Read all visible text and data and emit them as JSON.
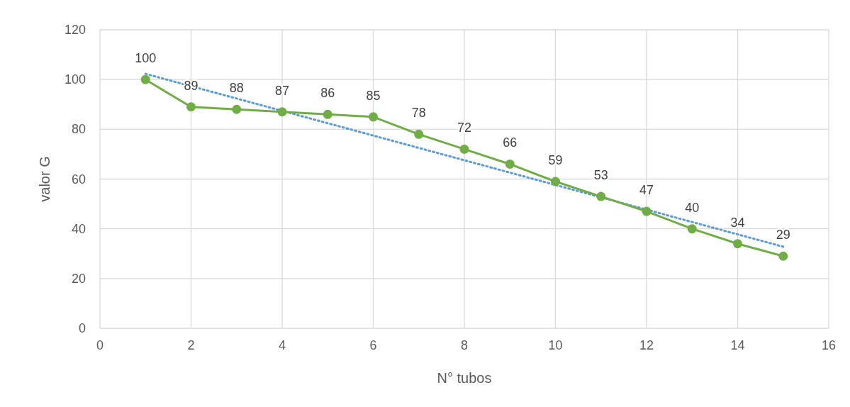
{
  "chart_data": {
    "type": "line",
    "xlabel": "N° tubos",
    "ylabel": "valor G",
    "xlim": [
      0,
      16
    ],
    "xticks": [
      0,
      2,
      4,
      6,
      8,
      10,
      12,
      14,
      16
    ],
    "ylim": [
      0,
      120
    ],
    "yticks": [
      0,
      20,
      40,
      60,
      80,
      100,
      120
    ],
    "grid": true,
    "series": [
      {
        "x": [
          1,
          2,
          3,
          4,
          5,
          6,
          7,
          8,
          9,
          10,
          11,
          12,
          13,
          14,
          15
        ],
        "values": [
          100,
          89,
          88,
          87,
          86,
          85,
          78,
          72,
          66,
          59,
          53,
          47,
          40,
          34,
          29
        ],
        "color": "#70ad47",
        "marker": "circle",
        "line_style": "solid",
        "data_labels": true
      },
      {
        "x": [
          1,
          15
        ],
        "values": [
          102.3,
          32.8
        ],
        "color": "#5b9bd5",
        "marker": "none",
        "line_style": "dotted"
      }
    ]
  }
}
